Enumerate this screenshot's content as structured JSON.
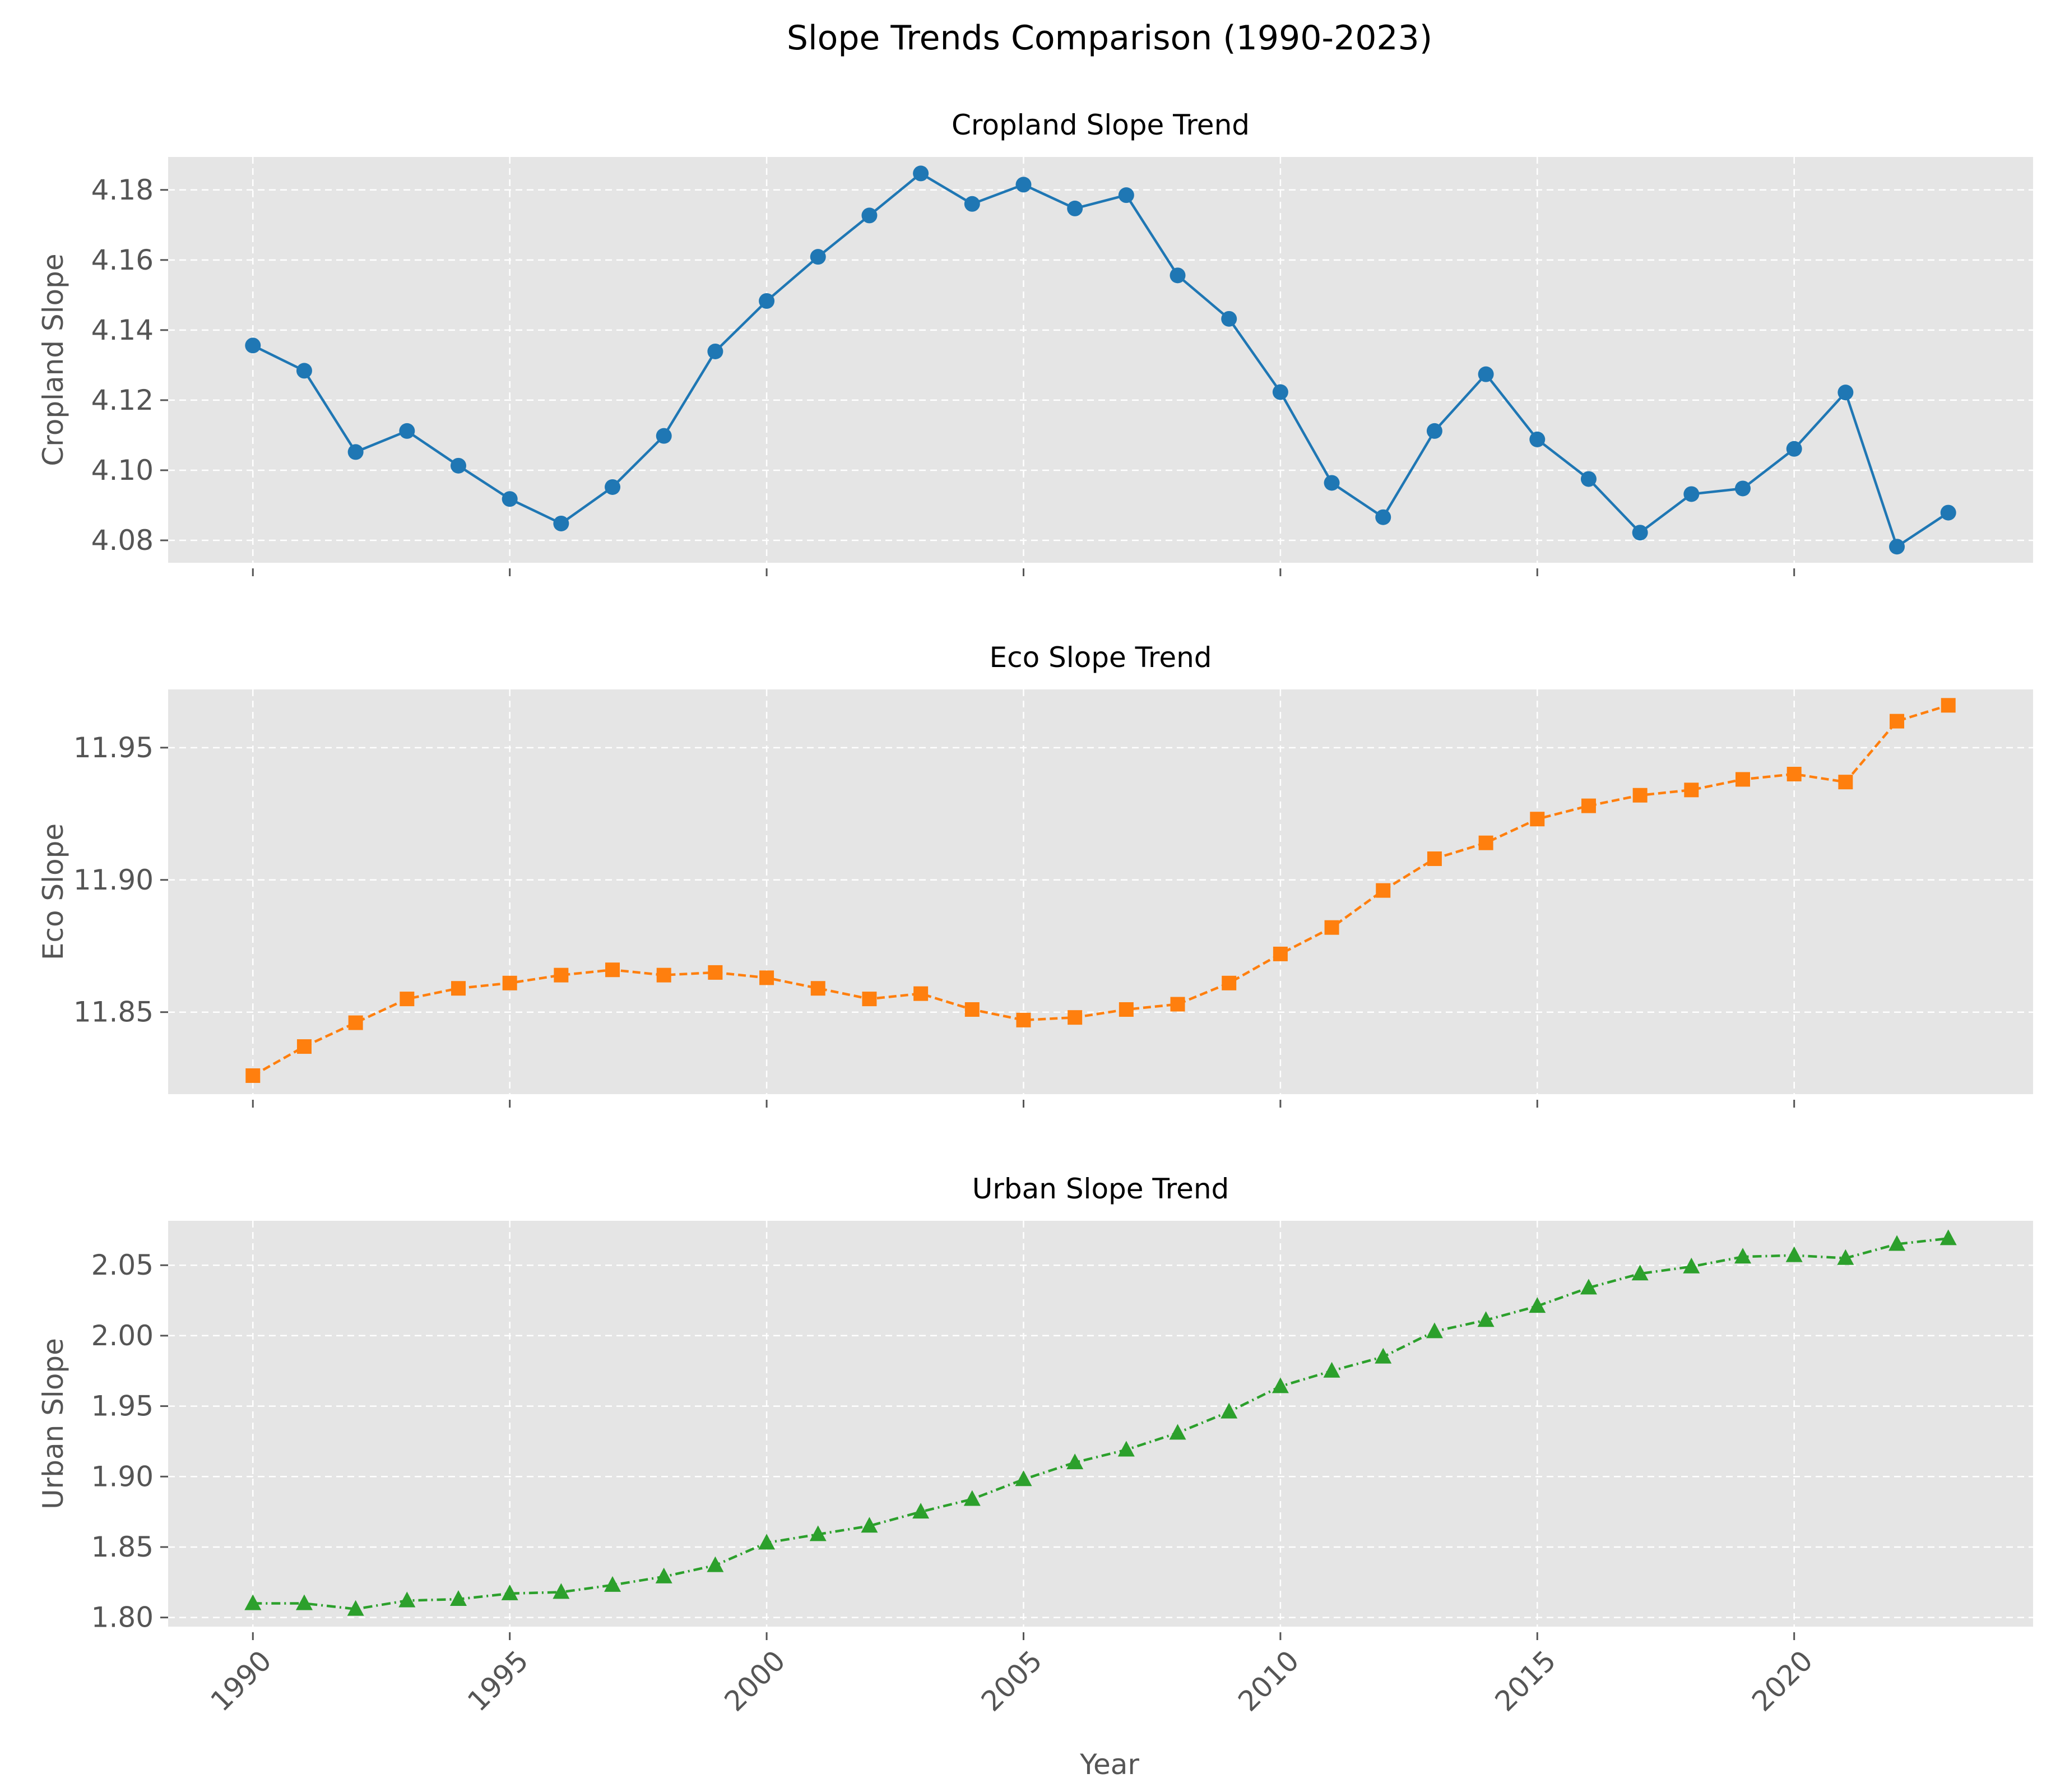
{
  "figure": {
    "title": "Slope Trends Comparison (1990-2023)",
    "xlabel": "Year"
  },
  "colors": {
    "panel_bg": "#e5e5e5",
    "grid": "#ffffff",
    "text": "#555555"
  },
  "chart_data": [
    {
      "type": "line",
      "title": "Cropland Slope Trend",
      "xlabel": "",
      "ylabel": "Cropland Slope",
      "color": "#1f77b4",
      "marker": "circle",
      "linestyle": "solid",
      "grid": true,
      "xlim": [
        1988.35,
        2024.65
      ],
      "ylim": [
        4.0736,
        4.1894
      ],
      "xticks": [
        1990,
        1995,
        2000,
        2005,
        2010,
        2015,
        2020
      ],
      "yticks": [
        4.08,
        4.1,
        4.12,
        4.14,
        4.16,
        4.18
      ],
      "ytick_labels": [
        "4.08",
        "4.10",
        "4.12",
        "4.14",
        "4.16",
        "4.18"
      ],
      "x": [
        1990,
        1991,
        1992,
        1993,
        1994,
        1995,
        1996,
        1997,
        1998,
        1999,
        2000,
        2001,
        2002,
        2003,
        2004,
        2005,
        2006,
        2007,
        2008,
        2009,
        2010,
        2011,
        2012,
        2013,
        2014,
        2015,
        2016,
        2017,
        2018,
        2019,
        2020,
        2021,
        2022,
        2023
      ],
      "y": [
        4.1356,
        4.1284,
        4.1052,
        4.1112,
        4.1013,
        4.0918,
        4.0848,
        4.0952,
        4.1098,
        4.1339,
        4.1483,
        4.1609,
        4.1727,
        4.1847,
        4.176,
        4.1815,
        4.1747,
        4.1785,
        4.1556,
        4.1432,
        4.1223,
        4.0964,
        4.0866,
        4.1112,
        4.1274,
        4.1088,
        4.0975,
        4.0822,
        4.0932,
        4.0948,
        4.1061,
        4.1222,
        4.0782,
        4.0879
      ]
    },
    {
      "type": "line",
      "title": "Eco Slope Trend",
      "xlabel": "",
      "ylabel": "Eco Slope",
      "color": "#ff7f0e",
      "marker": "square",
      "linestyle": "dashed",
      "grid": true,
      "xlim": [
        1988.35,
        2024.65
      ],
      "ylim": [
        11.819,
        11.972
      ],
      "xticks": [
        1990,
        1995,
        2000,
        2005,
        2010,
        2015,
        2020
      ],
      "yticks": [
        11.85,
        11.9,
        11.95
      ],
      "ytick_labels": [
        "11.85",
        "11.90",
        "11.95"
      ],
      "x": [
        1990,
        1991,
        1992,
        1993,
        1994,
        1995,
        1996,
        1997,
        1998,
        1999,
        2000,
        2001,
        2002,
        2003,
        2004,
        2005,
        2006,
        2007,
        2008,
        2009,
        2010,
        2011,
        2012,
        2013,
        2014,
        2015,
        2016,
        2017,
        2018,
        2019,
        2020,
        2021,
        2022,
        2023
      ],
      "y": [
        11.826,
        11.837,
        11.846,
        11.855,
        11.859,
        11.861,
        11.864,
        11.866,
        11.864,
        11.865,
        11.863,
        11.859,
        11.855,
        11.857,
        11.851,
        11.847,
        11.848,
        11.851,
        11.853,
        11.861,
        11.872,
        11.882,
        11.896,
        11.908,
        11.914,
        11.923,
        11.928,
        11.932,
        11.934,
        11.938,
        11.94,
        11.937,
        11.96,
        11.966
      ]
    },
    {
      "type": "line",
      "title": "Urban Slope Trend",
      "xlabel": "Year",
      "ylabel": "Urban Slope",
      "color": "#2ca02c",
      "marker": "triangle",
      "linestyle": "dashdot",
      "grid": true,
      "xlim": [
        1988.35,
        2024.65
      ],
      "ylim": [
        1.7935,
        2.0815
      ],
      "xticks": [
        1990,
        1995,
        2000,
        2005,
        2010,
        2015,
        2020
      ],
      "yticks": [
        1.8,
        1.85,
        1.9,
        1.95,
        2.0,
        2.05
      ],
      "ytick_labels": [
        "1.80",
        "1.85",
        "1.90",
        "1.95",
        "2.00",
        "2.05"
      ],
      "x": [
        1990,
        1991,
        1992,
        1993,
        1994,
        1995,
        1996,
        1997,
        1998,
        1999,
        2000,
        2001,
        2002,
        2003,
        2004,
        2005,
        2006,
        2007,
        2008,
        2009,
        2010,
        2011,
        2012,
        2013,
        2014,
        2015,
        2016,
        2017,
        2018,
        2019,
        2020,
        2021,
        2022,
        2023
      ],
      "y": [
        1.81,
        1.81,
        1.806,
        1.812,
        1.813,
        1.817,
        1.818,
        1.823,
        1.829,
        1.837,
        1.853,
        1.859,
        1.865,
        1.875,
        1.884,
        1.898,
        1.91,
        1.919,
        1.931,
        1.946,
        1.964,
        1.975,
        1.985,
        2.003,
        2.011,
        2.021,
        2.034,
        2.044,
        2.049,
        2.056,
        2.057,
        2.055,
        2.065,
        2.069
      ]
    }
  ]
}
